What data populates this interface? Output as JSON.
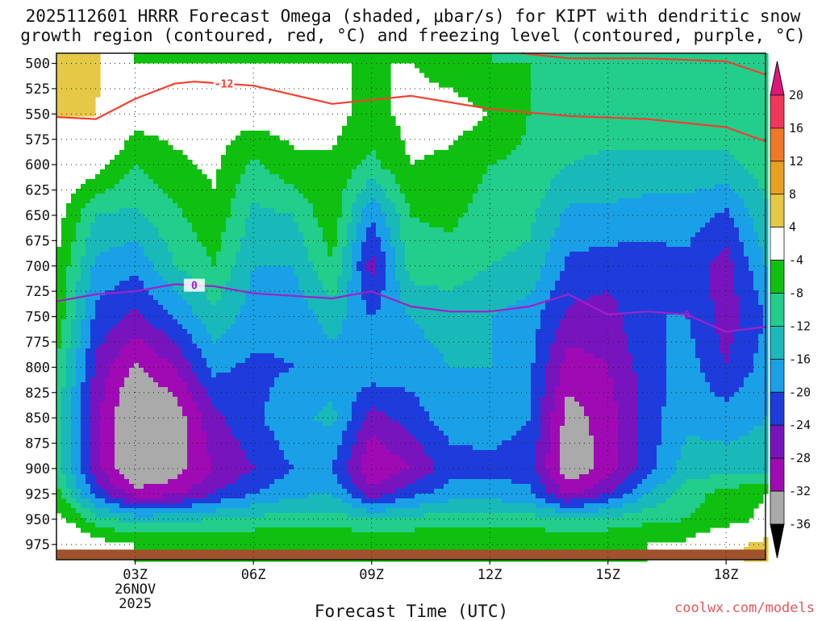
{
  "title": {
    "line1": "2025112601 HRRR Forecast Omega (shaded, μbar/s) for KIPT with dendritic snow",
    "line2": "growth region (contoured, red, °C) and freezing level (contoured, purple, °C)"
  },
  "credit": "coolwx.com/models",
  "chart_data": {
    "type": "heatmap",
    "title": "2025112601 HRRR Forecast Omega (shaded, μbar/s) for KIPT with dendritic snow growth region (contoured, red, °C) and freezing level (contoured, purple, °C)",
    "xlabel": "Forecast Time (UTC)",
    "ylabel": "",
    "x_unit": "forecast hour from 2025-11-26 01Z",
    "xlim": [
      0,
      18
    ],
    "ylim": [
      990,
      490
    ],
    "y_scale": "pressure (reversed)",
    "x_ticks": [
      {
        "value": 2,
        "label": "03Z",
        "sublabel1": "26NOV",
        "sublabel2": "2025"
      },
      {
        "value": 5,
        "label": "06Z"
      },
      {
        "value": 8,
        "label": "09Z"
      },
      {
        "value": 11,
        "label": "12Z"
      },
      {
        "value": 14,
        "label": "15Z"
      },
      {
        "value": 17,
        "label": "18Z"
      }
    ],
    "y_ticks": [
      500,
      525,
      550,
      575,
      600,
      625,
      650,
      675,
      700,
      725,
      750,
      775,
      800,
      825,
      850,
      875,
      900,
      925,
      950,
      975
    ],
    "grid": "dotted",
    "colorbar": {
      "unit": "μbar/s",
      "labels": [
        "20",
        "16",
        "12",
        "8",
        "4",
        "-4",
        "-8",
        "-12",
        "-16",
        "-20",
        "-24",
        "-28",
        "-32",
        "-36"
      ],
      "colors": [
        "#f0375a",
        "#f07828",
        "#e8a020",
        "#e6c846",
        "#ffffff",
        "#10c010",
        "#23cd8c",
        "#19b9b9",
        "#19a0e6",
        "#1e3cdc",
        "#7814be",
        "#a00ab4",
        "#aaaaaa",
        "#000000"
      ],
      "top_arrow_color": "#e0157a",
      "bottom_arrow_color": "#000000"
    },
    "fields": [
      {
        "name": "Omega",
        "grid_x": [
          0,
          1,
          2,
          3,
          4,
          5,
          6,
          7,
          8,
          9,
          10,
          11,
          12,
          13,
          14,
          15,
          16,
          17,
          18
        ],
        "grid_p": [
          500,
          550,
          600,
          650,
          700,
          750,
          800,
          850,
          900,
          925,
          950,
          975
        ],
        "values": [
          [
            4,
            5,
            -4,
            -4,
            -4,
            -4,
            -4,
            -4,
            -4,
            -4,
            -6,
            -8,
            -8,
            -9,
            -9,
            -9,
            -9,
            -9,
            -8
          ],
          [
            4,
            4,
            -2,
            -2,
            -2,
            -2,
            -2,
            -2,
            -6,
            -2,
            -2,
            -4,
            -8,
            -9,
            -10,
            -10,
            -10,
            -10,
            -9
          ],
          [
            1,
            -2,
            -8,
            -5,
            -3,
            -9,
            -5,
            -5,
            -9,
            -4,
            -5,
            -8,
            -9,
            -12,
            -13,
            -13,
            -13,
            -13,
            -10
          ],
          [
            -2,
            -12,
            -13,
            -9,
            -5,
            -13,
            -12,
            -5,
            -20,
            -8,
            -7,
            -10,
            -11,
            -17,
            -17,
            -18,
            -18,
            -21,
            -13
          ],
          [
            -4,
            -17,
            -19,
            -12,
            -8,
            -16,
            -16,
            -8,
            -26,
            -10,
            -10,
            -12,
            -13,
            -21,
            -22,
            -22,
            -21,
            -26,
            -16
          ],
          [
            -5,
            -21,
            -25,
            -20,
            -13,
            -18,
            -19,
            -14,
            -20,
            -16,
            -14,
            -16,
            -18,
            -25,
            -26,
            -20,
            -20,
            -26,
            -20
          ],
          [
            -8,
            -25,
            -33,
            -28,
            -19,
            -21,
            -20,
            -18,
            -17,
            -18,
            -16,
            -16,
            -19,
            -30,
            -28,
            -22,
            -18,
            -24,
            -18
          ],
          [
            -10,
            -27,
            -38,
            -35,
            -25,
            -21,
            -17,
            -15,
            -26,
            -22,
            -18,
            -18,
            -20,
            -34,
            -30,
            -22,
            -17,
            -18,
            -16
          ],
          [
            -10,
            -26,
            -38,
            -34,
            -28,
            -24,
            -20,
            -20,
            -32,
            -28,
            -22,
            -21,
            -22,
            -36,
            -30,
            -22,
            -14,
            -14,
            -14
          ],
          [
            -6,
            -22,
            -30,
            -29,
            -24,
            -20,
            -17,
            -16,
            -26,
            -21,
            -18,
            -18,
            -19,
            -29,
            -24,
            -16,
            -10,
            -6,
            -4
          ],
          [
            -2,
            -10,
            -14,
            -13,
            -12,
            -11,
            -10,
            -10,
            -12,
            -11,
            -10,
            -10,
            -10,
            -12,
            -11,
            -9,
            -8,
            -6,
            -3
          ],
          [
            4,
            -2,
            -4,
            -4,
            -4,
            -4,
            -4,
            -4,
            -4,
            -4,
            -4,
            -4,
            -4,
            -4,
            -4,
            -4,
            -3,
            2,
            6
          ]
        ]
      }
    ],
    "contours": [
      {
        "name": "Dendritic snow growth -12 °C",
        "color": "#f04030",
        "label": "-12",
        "x": [
          0,
          1,
          2,
          3,
          3.5,
          5,
          7,
          9,
          11,
          13,
          15,
          17,
          18
        ],
        "p": [
          553,
          555,
          535,
          520,
          518,
          522,
          540,
          532,
          545,
          552,
          555,
          563,
          577
        ]
      },
      {
        "name": "Dendritic snow growth -12 °C (upper)",
        "color": "#f04030",
        "label": "",
        "x": [
          11.8,
          13,
          15,
          17,
          18
        ],
        "p": [
          490,
          495,
          495,
          498,
          511
        ]
      },
      {
        "name": "Freezing level 0 °C",
        "color": "#a020c8",
        "label": "0",
        "x": [
          0,
          1,
          2,
          3,
          4,
          5,
          7,
          8,
          9,
          10,
          11,
          12,
          13,
          14,
          15,
          16,
          17,
          18
        ],
        "p": [
          735,
          728,
          725,
          718,
          720,
          727,
          732,
          725,
          740,
          745,
          745,
          740,
          728,
          748,
          745,
          748,
          765,
          760
        ]
      }
    ]
  }
}
